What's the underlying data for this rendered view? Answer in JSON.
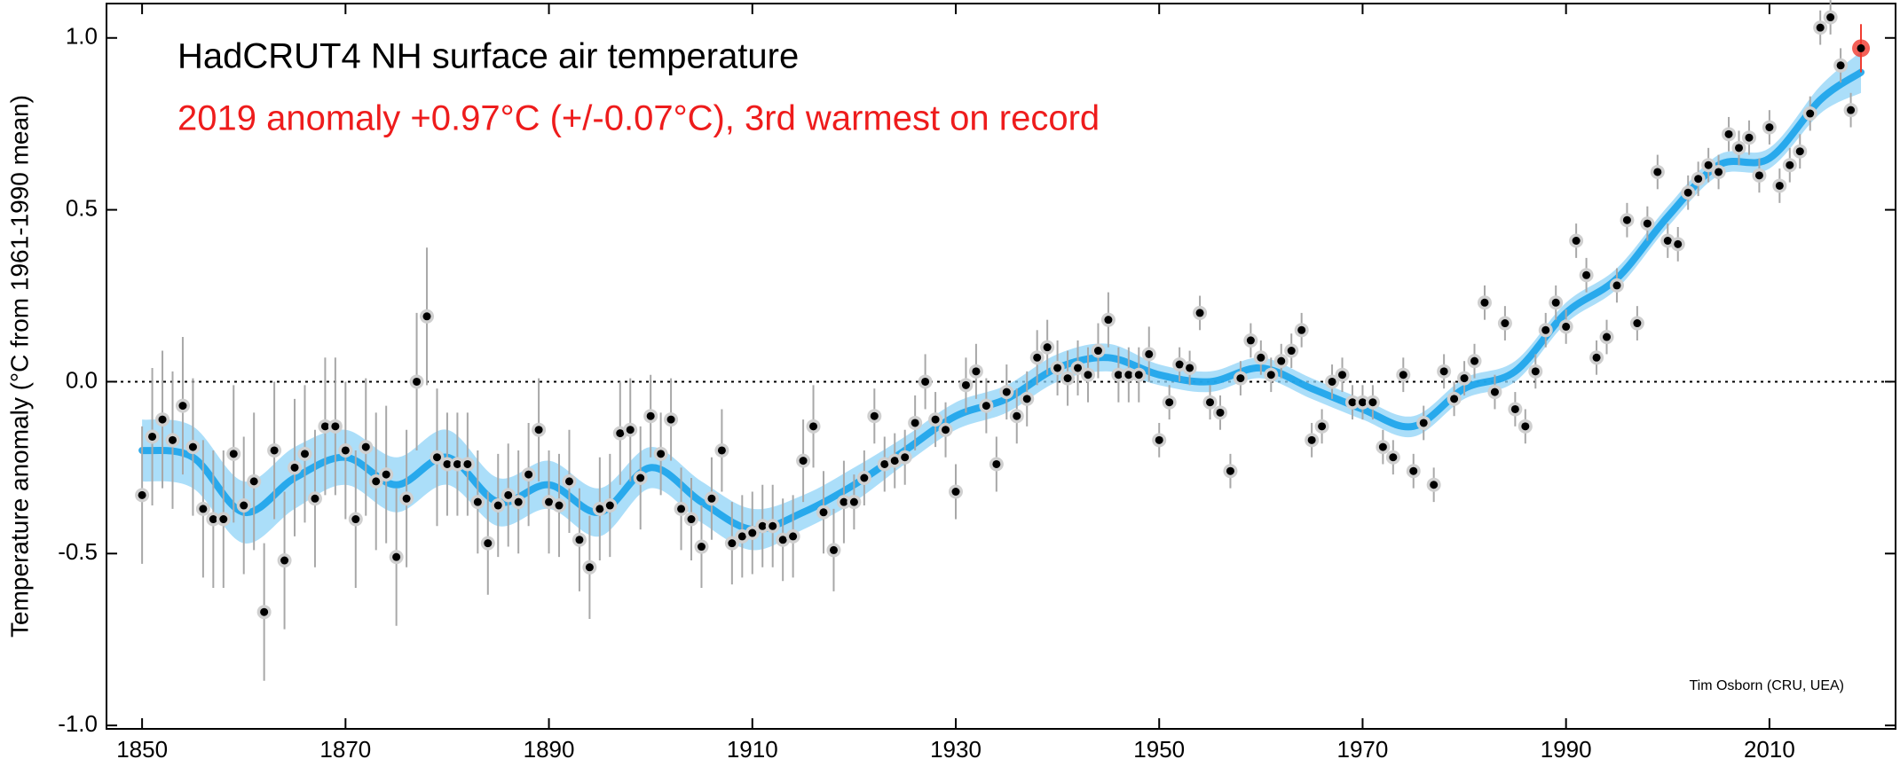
{
  "chart_data": {
    "type": "scatter",
    "title": "HadCRUT4 NH surface air temperature",
    "subtitle": "2019 anomaly +0.97°C (+/-0.07°C), 3rd warmest on record",
    "credit": "Tim Osborn (CRU, UEA)",
    "y_label": "Temperature anomaly (°C from 1961-1990 mean)",
    "xlim": [
      1846.5,
      2022.4
    ],
    "ylim": [
      -1.01,
      1.1
    ],
    "xticks": [
      1850,
      1870,
      1890,
      1910,
      1930,
      1950,
      1970,
      1990,
      2010
    ],
    "yticks": [
      {
        "value": 1,
        "label": "1.0"
      },
      {
        "value": 0.5,
        "label": "0.5"
      },
      {
        "value": 0,
        "label": "0.0"
      },
      {
        "value": -0.5,
        "label": "-0.5"
      },
      {
        "value": -1,
        "label": "-1.0"
      }
    ],
    "reference_line": 0,
    "color": "#000000",
    "error_color": "#a8a8a8",
    "highlight_color": "#f03a2e",
    "x": [
      1850,
      1851,
      1852,
      1853,
      1854,
      1855,
      1856,
      1857,
      1858,
      1859,
      1860,
      1861,
      1862,
      1863,
      1864,
      1865,
      1866,
      1867,
      1868,
      1869,
      1870,
      1871,
      1872,
      1873,
      1874,
      1875,
      1876,
      1877,
      1878,
      1879,
      1880,
      1881,
      1882,
      1883,
      1884,
      1885,
      1886,
      1887,
      1888,
      1889,
      1890,
      1891,
      1892,
      1893,
      1894,
      1895,
      1896,
      1897,
      1898,
      1899,
      1900,
      1901,
      1902,
      1903,
      1904,
      1905,
      1906,
      1907,
      1908,
      1909,
      1910,
      1911,
      1912,
      1913,
      1914,
      1915,
      1916,
      1917,
      1918,
      1919,
      1920,
      1921,
      1922,
      1923,
      1924,
      1925,
      1926,
      1927,
      1928,
      1929,
      1930,
      1931,
      1932,
      1933,
      1934,
      1935,
      1936,
      1937,
      1938,
      1939,
      1940,
      1941,
      1942,
      1943,
      1944,
      1945,
      1946,
      1947,
      1948,
      1949,
      1950,
      1951,
      1952,
      1953,
      1954,
      1955,
      1956,
      1957,
      1958,
      1959,
      1960,
      1961,
      1962,
      1963,
      1964,
      1965,
      1966,
      1967,
      1968,
      1969,
      1970,
      1971,
      1972,
      1973,
      1974,
      1975,
      1976,
      1977,
      1978,
      1979,
      1980,
      1981,
      1982,
      1983,
      1984,
      1985,
      1986,
      1987,
      1988,
      1989,
      1990,
      1991,
      1992,
      1993,
      1994,
      1995,
      1996,
      1997,
      1998,
      1999,
      2000,
      2001,
      2002,
      2003,
      2004,
      2005,
      2006,
      2007,
      2008,
      2009,
      2010,
      2011,
      2012,
      2013,
      2014,
      2015,
      2016,
      2017,
      2018,
      2019
    ],
    "values": [
      -0.33,
      -0.16,
      -0.11,
      -0.17,
      -0.07,
      -0.19,
      -0.37,
      -0.4,
      -0.4,
      -0.21,
      -0.36,
      -0.29,
      -0.67,
      -0.2,
      -0.52,
      -0.25,
      -0.21,
      -0.34,
      -0.13,
      -0.13,
      -0.2,
      -0.4,
      -0.19,
      -0.29,
      -0.27,
      -0.51,
      -0.34,
      0.0,
      0.19,
      -0.22,
      -0.24,
      -0.24,
      -0.24,
      -0.35,
      -0.47,
      -0.36,
      -0.33,
      -0.35,
      -0.27,
      -0.14,
      -0.35,
      -0.36,
      -0.29,
      -0.46,
      -0.54,
      -0.37,
      -0.36,
      -0.15,
      -0.14,
      -0.28,
      -0.1,
      -0.21,
      -0.11,
      -0.37,
      -0.4,
      -0.48,
      -0.34,
      -0.2,
      -0.47,
      -0.45,
      -0.44,
      -0.42,
      -0.42,
      -0.46,
      -0.45,
      -0.23,
      -0.13,
      -0.38,
      -0.49,
      -0.35,
      -0.35,
      -0.28,
      -0.1,
      -0.24,
      -0.23,
      -0.22,
      -0.12,
      0.0,
      -0.11,
      -0.14,
      -0.32,
      -0.01,
      0.03,
      -0.07,
      -0.24,
      -0.03,
      -0.1,
      -0.05,
      0.07,
      0.1,
      0.04,
      0.01,
      0.04,
      0.02,
      0.09,
      0.18,
      0.02,
      0.02,
      0.02,
      0.08,
      -0.17,
      -0.06,
      0.05,
      0.04,
      0.2,
      -0.06,
      -0.09,
      -0.26,
      0.01,
      0.12,
      0.07,
      0.02,
      0.06,
      0.09,
      0.15,
      -0.17,
      -0.13,
      0.0,
      0.02,
      -0.06,
      -0.06,
      -0.06,
      -0.19,
      -0.22,
      0.02,
      -0.26,
      -0.12,
      -0.3,
      0.03,
      -0.05,
      0.01,
      0.06,
      0.23,
      -0.03,
      0.17,
      -0.08,
      -0.13,
      0.03,
      0.15,
      0.23,
      0.16,
      0.41,
      0.31,
      0.07,
      0.13,
      0.28,
      0.47,
      0.17,
      0.46,
      0.61,
      0.41,
      0.4,
      0.55,
      0.59,
      0.63,
      0.61,
      0.72,
      0.68,
      0.71,
      0.6,
      0.74,
      0.57,
      0.63,
      0.67,
      0.78,
      1.03,
      1.06,
      0.92,
      0.79,
      0.97
    ],
    "errors": [
      0.2,
      0.2,
      0.2,
      0.2,
      0.2,
      0.2,
      0.2,
      0.2,
      0.2,
      0.2,
      0.2,
      0.2,
      0.2,
      0.2,
      0.2,
      0.2,
      0.2,
      0.2,
      0.2,
      0.2,
      0.2,
      0.2,
      0.2,
      0.2,
      0.2,
      0.2,
      0.2,
      0.2,
      0.2,
      0.2,
      0.15,
      0.15,
      0.15,
      0.15,
      0.15,
      0.15,
      0.15,
      0.15,
      0.15,
      0.15,
      0.15,
      0.15,
      0.15,
      0.15,
      0.15,
      0.15,
      0.15,
      0.15,
      0.15,
      0.15,
      0.12,
      0.12,
      0.12,
      0.12,
      0.12,
      0.12,
      0.12,
      0.12,
      0.12,
      0.12,
      0.12,
      0.12,
      0.12,
      0.12,
      0.12,
      0.12,
      0.12,
      0.12,
      0.12,
      0.12,
      0.08,
      0.08,
      0.08,
      0.08,
      0.08,
      0.08,
      0.08,
      0.08,
      0.08,
      0.08,
      0.08,
      0.08,
      0.08,
      0.08,
      0.08,
      0.08,
      0.08,
      0.08,
      0.08,
      0.08,
      0.08,
      0.08,
      0.08,
      0.08,
      0.08,
      0.08,
      0.08,
      0.08,
      0.08,
      0.08,
      0.05,
      0.05,
      0.05,
      0.05,
      0.05,
      0.05,
      0.05,
      0.05,
      0.05,
      0.05,
      0.05,
      0.05,
      0.05,
      0.05,
      0.05,
      0.05,
      0.05,
      0.05,
      0.05,
      0.05,
      0.05,
      0.05,
      0.05,
      0.05,
      0.05,
      0.05,
      0.05,
      0.05,
      0.05,
      0.05,
      0.05,
      0.05,
      0.05,
      0.05,
      0.05,
      0.05,
      0.05,
      0.05,
      0.05,
      0.05,
      0.05,
      0.05,
      0.05,
      0.05,
      0.05,
      0.05,
      0.05,
      0.05,
      0.05,
      0.05,
      0.05,
      0.05,
      0.05,
      0.05,
      0.05,
      0.05,
      0.05,
      0.05,
      0.05,
      0.05,
      0.05,
      0.05,
      0.05,
      0.05,
      0.05,
      0.05,
      0.05,
      0.05,
      0.05,
      0.07
    ],
    "smooth": {
      "color": "#1aa3ea",
      "band_color": "#8fd3f7",
      "x": [
        1850,
        1855,
        1860,
        1865,
        1870,
        1875,
        1880,
        1885,
        1890,
        1895,
        1900,
        1905,
        1910,
        1915,
        1920,
        1925,
        1930,
        1935,
        1940,
        1945,
        1950,
        1955,
        1960,
        1965,
        1970,
        1975,
        1980,
        1985,
        1990,
        1995,
        2000,
        2005,
        2010,
        2015,
        2019
      ],
      "values": [
        -0.2,
        -0.22,
        -0.38,
        -0.28,
        -0.22,
        -0.3,
        -0.22,
        -0.35,
        -0.3,
        -0.38,
        -0.25,
        -0.35,
        -0.43,
        -0.38,
        -0.3,
        -0.2,
        -0.1,
        -0.05,
        0.04,
        0.07,
        0.02,
        0.0,
        0.04,
        -0.02,
        -0.08,
        -0.13,
        -0.02,
        0.03,
        0.2,
        0.3,
        0.48,
        0.63,
        0.65,
        0.82,
        0.9
      ],
      "band": [
        0.09,
        0.09,
        0.09,
        0.09,
        0.08,
        0.08,
        0.08,
        0.07,
        0.07,
        0.07,
        0.06,
        0.06,
        0.06,
        0.05,
        0.05,
        0.04,
        0.04,
        0.04,
        0.04,
        0.04,
        0.03,
        0.03,
        0.03,
        0.03,
        0.03,
        0.03,
        0.03,
        0.03,
        0.03,
        0.03,
        0.03,
        0.03,
        0.03,
        0.04,
        0.06
      ]
    }
  }
}
